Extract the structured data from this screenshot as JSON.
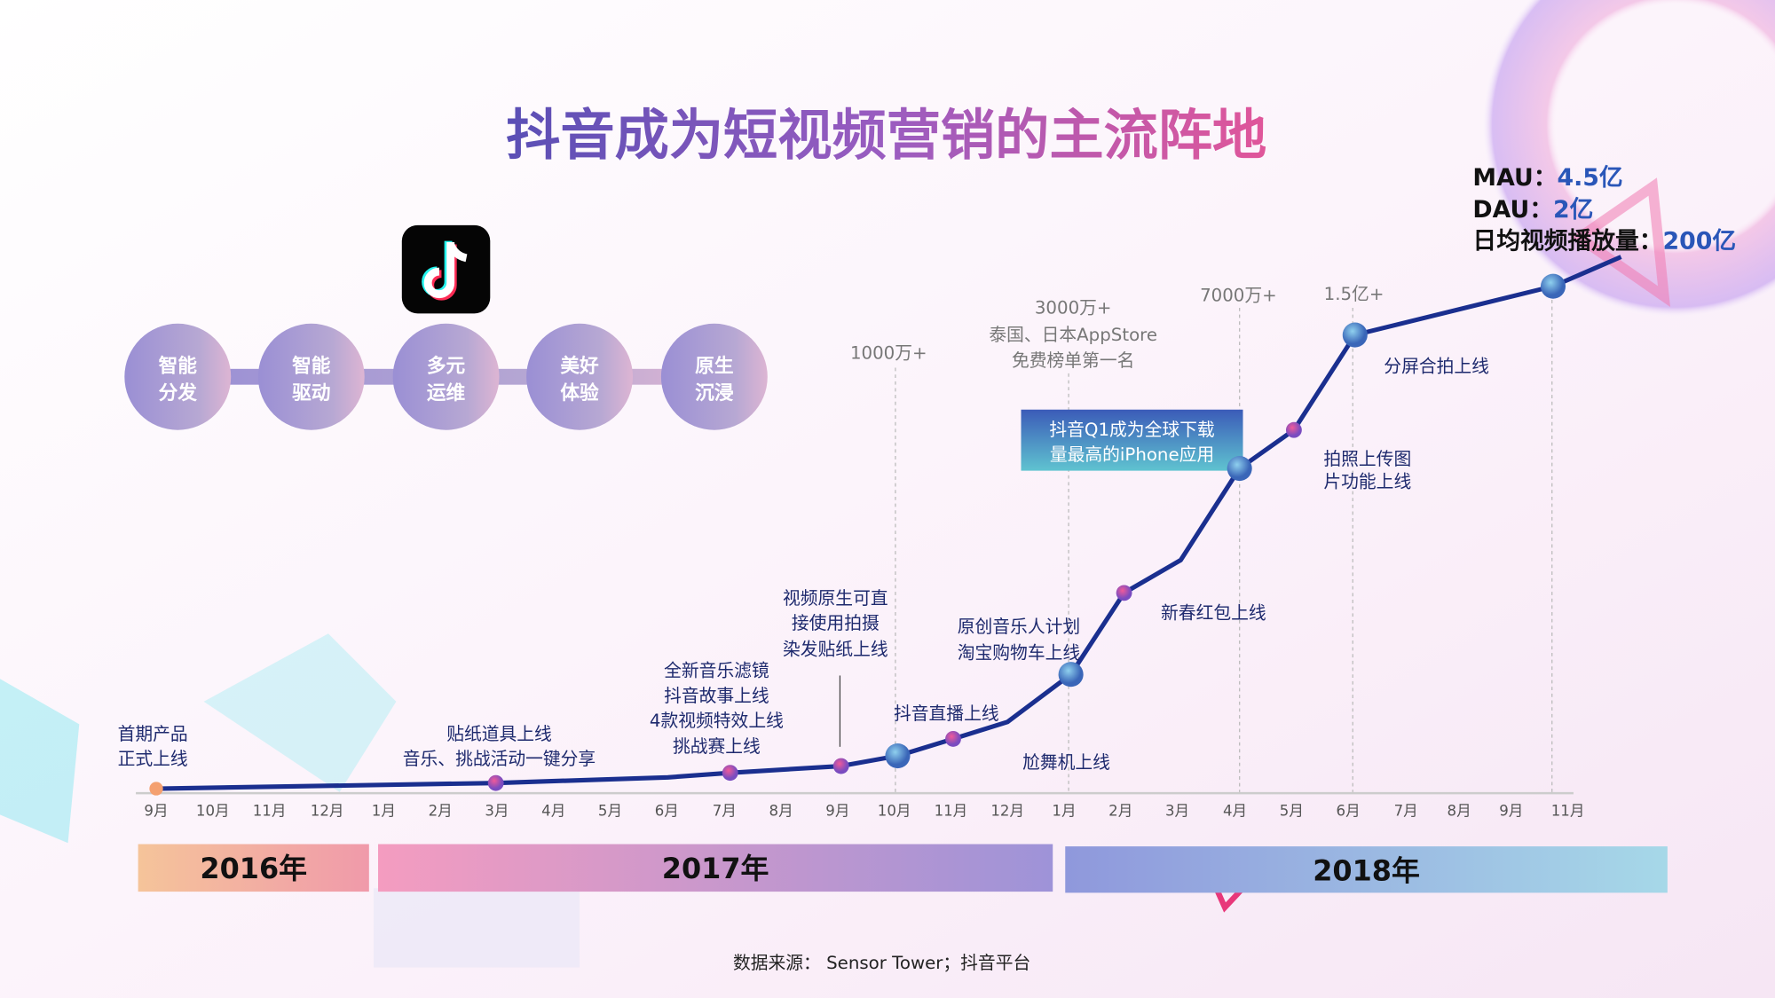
{
  "title": "抖音成为短视频营销的主流阵地",
  "logo": "tiktok-logo",
  "features": [
    {
      "line1": "智能",
      "line2": "分发"
    },
    {
      "line1": "智能",
      "line2": "驱动"
    },
    {
      "line1": "多元",
      "line2": "运维"
    },
    {
      "line1": "美好",
      "line2": "体验"
    },
    {
      "line1": "原生",
      "line2": "沉浸"
    }
  ],
  "kpis": {
    "mau_label": "MAU：",
    "mau_value": "4.5亿",
    "dau_label": "DAU：",
    "dau_value": "2亿",
    "plays_label": "日均视频播放量：",
    "plays_value": "200亿"
  },
  "chart_data": {
    "type": "line",
    "title": "",
    "x_ticks": [
      "9月",
      "10月",
      "11月",
      "12月",
      "1月",
      "2月",
      "3月",
      "4月",
      "5月",
      "6月",
      "7月",
      "8月",
      "9月",
      "10月",
      "11月",
      "12月",
      "1月",
      "2月",
      "3月",
      "4月",
      "5月",
      "6月",
      "7月",
      "8月",
      "9月",
      "11月"
    ],
    "years": [
      "2016年",
      "2017年",
      "2018年"
    ],
    "user_milestones": [
      {
        "x": "2017-10",
        "label": "1000万+"
      },
      {
        "x": "2018-01",
        "label": "3000万+",
        "note1": "泰国、日本AppStore",
        "note2": "免费榜单第一名"
      },
      {
        "x": "2018-04",
        "label": "7000万+"
      },
      {
        "x": "2018-06",
        "label": "1.5亿+"
      }
    ],
    "events": {
      "launch": [
        "首期产品",
        "正式上线"
      ],
      "stickers": [
        "贴纸道具上线",
        "音乐、挑战活动一键分享"
      ],
      "jul2017": [
        "全新音乐滤镜",
        "抖音故事上线",
        "4款视频特效上线",
        "挑战赛上线"
      ],
      "sep2017": [
        "视频原生可直",
        "接使用拍摄",
        "染发贴纸上线"
      ],
      "live": "抖音直播上线",
      "music": [
        "原创音乐人计划",
        "淘宝购物车上线"
      ],
      "dance": "尬舞机上线",
      "redpacket": "新春红包上线",
      "photo": [
        "拍照上传图",
        "片功能上线"
      ],
      "splitscreen": "分屏合拍上线",
      "q1box": [
        "抖音Q1成为全球下载",
        "量最高的iPhone应用"
      ]
    },
    "line_color": "#1a2f8f"
  },
  "source": "数据来源：  Sensor Tower；抖音平台"
}
